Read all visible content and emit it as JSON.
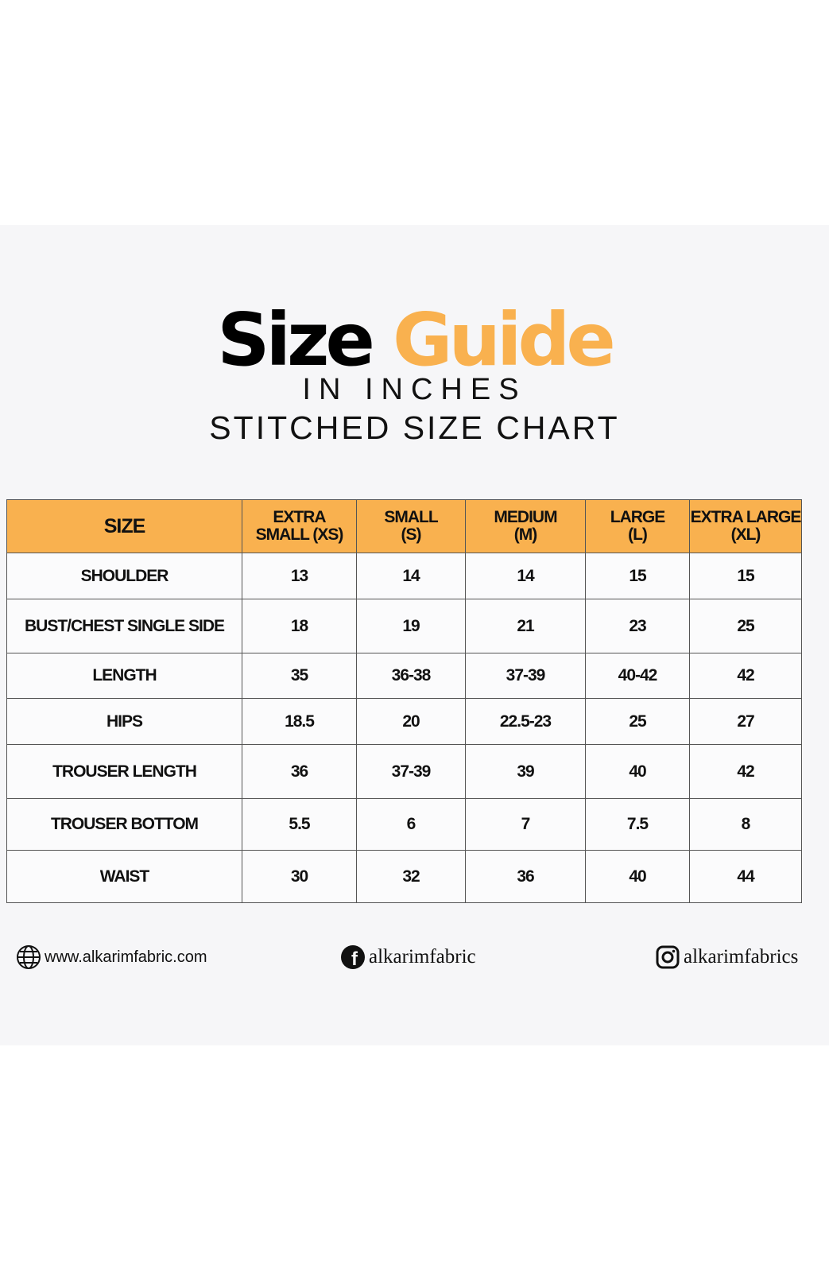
{
  "header": {
    "title_black": "Size",
    "title_orange": "Guide",
    "subtitle": "IN INCHES",
    "chart_title": "STITCHED SIZE CHART"
  },
  "table": {
    "columns": [
      "SIZE",
      "EXTRA\nSMALL (XS)",
      "SMALL\n(S)",
      "MEDIUM\n(M)",
      "LARGE\n(L)",
      "EXTRA LARGE\n(XL)"
    ],
    "rows": [
      [
        "SHOULDER",
        13,
        14,
        14,
        15,
        15
      ],
      [
        "BUST/CHEST SINGLE SIDE",
        18,
        19,
        21,
        23,
        25
      ],
      [
        "LENGTH",
        35,
        "36-38",
        "37-39",
        "40-42",
        42
      ],
      [
        "HIPS",
        18.5,
        20,
        "22.5-23",
        25,
        27
      ],
      [
        "TROUSER LENGTH",
        36,
        "37-39",
        39,
        40,
        42
      ],
      [
        "TROUSER BOTTOM",
        5.5,
        6,
        7,
        7.5,
        8
      ],
      [
        "WAIST",
        30,
        32,
        36,
        40,
        44
      ]
    ]
  },
  "footer": {
    "website": "www.alkarimfabric.com",
    "facebook": "alkarimfabric",
    "instagram": "alkarimfabrics"
  }
}
